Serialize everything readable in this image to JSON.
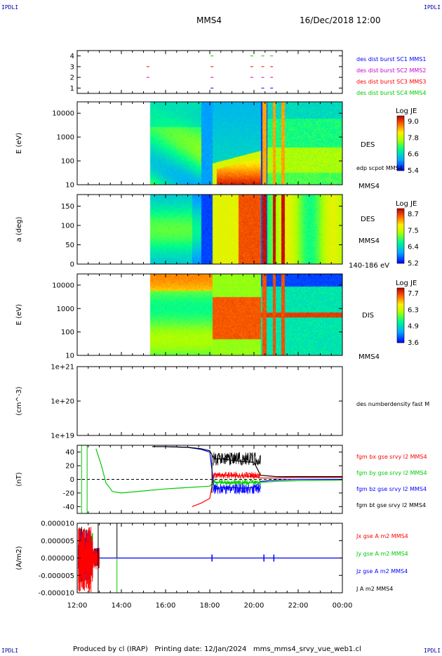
{
  "header": {
    "left_logo": "IPDLI",
    "right_logo": "IPDLI",
    "title": "MMS4",
    "date": "16/Dec/2018 12:00"
  },
  "footer": {
    "text": "Produced by cl (IRAP)   Printing date: 12/Jan/2024   mms_mms4_srvy_vue_web1.cl",
    "left_logo": "IPDLI",
    "right_logo": "IPDLI"
  },
  "colors": {
    "c1": "#0000ff",
    "c2": "#cc00cc",
    "c3": "#ff0000",
    "c4": "#00cc00",
    "bx": "#ff0000",
    "by": "#00cc00",
    "bz": "#0000ff",
    "bt": "#000000"
  },
  "chart_data": [
    {
      "type": "scatter",
      "panel": "burst-availability",
      "x_ticks": [
        "12:00",
        "14:00",
        "16:00",
        "18:00",
        "20:00",
        "22:00",
        "00:00"
      ],
      "y_ticks": [
        "1",
        "2",
        "3",
        "4"
      ],
      "ylim": [
        0.5,
        4.5
      ],
      "series": [
        {
          "name": "des dist burst SC1 MMS1",
          "level": 1,
          "hours": [
            18.1,
            20.4,
            20.8
          ]
        },
        {
          "name": "des dist burst SC2 MMS2",
          "level": 2,
          "hours": [
            15.2,
            18.1,
            19.9,
            20.4,
            20.8
          ]
        },
        {
          "name": "des dist burst SC3 MMS3",
          "level": 3,
          "hours": [
            15.2,
            18.1,
            19.9,
            20.4,
            20.8
          ]
        },
        {
          "name": "des dist burst SC4 MMS4",
          "level": 4,
          "hours": [
            18.1,
            19.9,
            20.4,
            20.8
          ]
        }
      ]
    },
    {
      "type": "heatmap",
      "panel": "des-energy-spectrogram",
      "ylabel": "E (eV)",
      "y_ticks": [
        "10",
        "100",
        "1000",
        "10000"
      ],
      "ylog": true,
      "ylim": [
        10,
        30000
      ],
      "side_label": "DES",
      "side_label2": "edp scpot MMS4",
      "side_label3": "MMS4",
      "colorbar": {
        "title": "Log JE",
        "ticks": [
          "9.0",
          "7.8",
          "6.6",
          "5.4"
        ],
        "range": [
          5.4,
          9.0
        ]
      }
    },
    {
      "type": "heatmap",
      "panel": "des-pitch-angle",
      "ylabel": "a (deg)",
      "y_ticks": [
        "0",
        "50",
        "100",
        "150"
      ],
      "ylim": [
        0,
        180
      ],
      "side_label": "DES",
      "side_label2": "MMS4",
      "side_label3": "140-186 eV",
      "colorbar": {
        "title": "Log JE",
        "ticks": [
          "8.7",
          "7.5",
          "6.4",
          "5.2"
        ],
        "range": [
          5.2,
          8.7
        ]
      }
    },
    {
      "type": "heatmap",
      "panel": "dis-energy-spectrogram",
      "ylabel": "E (eV)",
      "y_ticks": [
        "10",
        "100",
        "1000",
        "10000"
      ],
      "ylog": true,
      "ylim": [
        10,
        30000
      ],
      "side_label": "DIS",
      "side_label2": "MMS4",
      "colorbar": {
        "title": "Log JE",
        "ticks": [
          "7.7",
          "6.3",
          "4.9",
          "3.6"
        ],
        "range": [
          3.6,
          7.7
        ]
      }
    },
    {
      "type": "line",
      "panel": "density",
      "ylabel": "(cm^-3)",
      "y_ticks": [
        "1e+19",
        "1e+20",
        "1e+21"
      ],
      "ylog": true,
      "ylim": [
        1e+19,
        1e+21
      ],
      "series": [
        {
          "name": "des numberdensity fast M",
          "x": [],
          "y": []
        }
      ]
    },
    {
      "type": "line",
      "panel": "magnetic-field",
      "ylabel": "(nT)",
      "y_ticks": [
        "-40",
        "-20",
        "0",
        "20",
        "40"
      ],
      "ylim": [
        -50,
        50
      ],
      "series": [
        {
          "name": "fgm bx gse srvy l2 MMS4",
          "x": [
            17.2,
            17.6,
            18.0,
            18.2,
            18.6,
            19.0,
            19.5,
            20.0,
            20.3,
            21.0,
            22.0,
            24.0
          ],
          "y": [
            -40,
            -35,
            -28,
            8,
            6,
            5,
            5,
            4,
            2,
            2,
            3,
            3
          ]
        },
        {
          "name": "fgm by gse srvy l2 MMS4",
          "x": [
            12.85,
            13.1,
            13.3,
            13.6,
            14.0,
            15.0,
            16.0,
            17.0,
            18.0,
            18.2,
            19.0,
            20.0,
            21.0,
            22.0,
            24.0
          ],
          "y": [
            45,
            20,
            -5,
            -18,
            -20,
            -17,
            -14,
            -12,
            -10,
            -4,
            -5,
            -5,
            -3,
            -2,
            -1
          ]
        },
        {
          "name": "fgm bz gse srvy l2 MMS4",
          "x": [
            15.4,
            16.0,
            17.0,
            17.6,
            18.0,
            18.2,
            18.6,
            19.0,
            19.5,
            20.0,
            20.3,
            21.0,
            22.0,
            24.0
          ],
          "y": [
            48,
            48,
            47,
            44,
            40,
            -14,
            -12,
            -12,
            -13,
            -12,
            -3,
            -1,
            0,
            0
          ]
        },
        {
          "name": "fgm bt gse srvy l2 MMS4",
          "x": [
            15.4,
            16.0,
            17.0,
            17.6,
            18.0,
            18.2,
            18.6,
            19.0,
            19.5,
            20.0,
            20.3,
            21.0,
            22.0,
            24.0
          ],
          "y": [
            48,
            48,
            47,
            45,
            42,
            30,
            30,
            28,
            26,
            25,
            6,
            4,
            4,
            4
          ]
        }
      ]
    },
    {
      "type": "line",
      "panel": "current-density",
      "ylabel": "(A/m2)",
      "y_ticks": [
        "-0.000010",
        "-0.000005",
        "0.000000",
        "0.000005",
        "0.000010"
      ],
      "ylim": [
        -1e-05,
        1e-05
      ],
      "x_ticks": [
        "12:00",
        "14:00",
        "16:00",
        "18:00",
        "20:00",
        "22:00",
        "00:00"
      ],
      "series": [
        {
          "name": "Jx gse A m2 MMS4"
        },
        {
          "name": "Jy gse A m2 MMS4"
        },
        {
          "name": "Jz gse A m2 MMS4"
        },
        {
          "name": "J A m2 MMS4"
        }
      ]
    }
  ]
}
